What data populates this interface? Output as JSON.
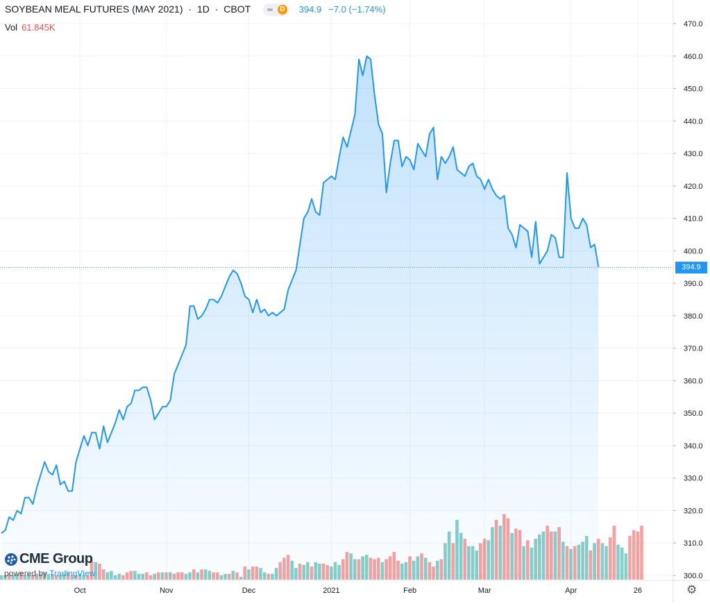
{
  "header": {
    "symbol": "SOYBEAN MEAL FUTURES (MAY 2021)",
    "interval": "1D",
    "exchange": "CBOT",
    "badge": "D",
    "last": "394.9",
    "change": "−7.0 (−1.74%)",
    "vol_label": "Vol",
    "vol_value": "61.845K"
  },
  "brand": {
    "name": "CME Group",
    "powered_prefix": "powered by",
    "powered_name": "TradingView"
  },
  "colors": {
    "line": "#2196f3",
    "vol_up": "#26a69a",
    "vol_down": "#ef5350",
    "grid": "#f0f3fa",
    "axis_text": "#131722"
  },
  "chart_data": {
    "type": "area",
    "title": "SOYBEAN MEAL FUTURES (MAY 2021)",
    "grid": true,
    "y_axis": {
      "position": "right",
      "range": [
        300,
        470
      ],
      "ticks": [
        "300.0",
        "310.0",
        "320.0",
        "330.0",
        "340.0",
        "350.0",
        "360.0",
        "370.0",
        "380.0",
        "390.0",
        "400.0",
        "410.0",
        "420.0",
        "430.0",
        "440.0",
        "450.0",
        "460.0",
        "470.0"
      ]
    },
    "x_axis": {
      "ticks": [
        {
          "label": "Oct",
          "day": 20
        },
        {
          "label": "Nov",
          "day": 42
        },
        {
          "label": "Dec",
          "day": 63
        },
        {
          "label": "2021",
          "day": 84
        },
        {
          "label": "Feb",
          "day": 104
        },
        {
          "label": "Mar",
          "day": 123
        },
        {
          "label": "Apr",
          "day": 145
        },
        {
          "label": "26",
          "day": 162
        }
      ]
    },
    "last_price": "394.9",
    "series": [
      {
        "values": [
          313,
          314,
          318,
          317,
          320,
          319,
          324,
          324,
          322,
          327,
          331,
          335,
          332,
          331,
          334,
          328,
          329,
          326,
          326,
          335,
          339,
          343,
          340,
          344,
          344,
          339,
          346,
          341,
          344,
          347,
          351,
          348,
          352,
          353,
          357,
          357,
          358,
          358,
          354,
          348,
          350,
          352,
          352,
          354,
          362,
          365,
          368,
          371,
          383,
          383,
          379,
          380,
          382,
          385,
          385,
          384,
          386,
          389,
          392,
          394,
          393,
          390,
          386,
          385,
          381,
          385,
          381,
          382,
          380,
          381,
          380,
          381,
          382,
          388,
          391,
          394,
          402,
          410,
          412,
          416,
          412,
          411,
          421,
          422,
          423,
          422,
          429,
          435,
          432,
          437,
          442,
          459,
          454,
          460,
          459,
          448,
          439,
          436,
          418,
          427,
          434,
          434,
          426,
          429,
          428,
          425,
          433,
          431,
          429,
          436,
          438,
          422,
          429,
          427,
          429,
          432,
          425,
          424,
          423,
          426,
          427,
          423,
          422,
          419,
          422,
          419,
          417,
          416,
          417,
          407,
          405,
          401,
          408,
          407,
          406,
          398,
          409,
          396,
          398,
          400,
          405,
          404,
          398,
          398,
          424,
          410,
          407,
          407,
          410,
          408,
          401,
          402,
          395
        ]
      }
    ],
    "volume": {
      "label": "Vol",
      "last": "61.845K",
      "max_value": 61845,
      "bars": [
        {
          "v": 0.03,
          "d": "up"
        },
        {
          "v": 0.03,
          "d": "up"
        },
        {
          "v": 0.04,
          "d": "down"
        },
        {
          "v": 0.03,
          "d": "up"
        },
        {
          "v": 0.04,
          "d": "up"
        },
        {
          "v": 0.05,
          "d": "down"
        },
        {
          "v": 0.03,
          "d": "up"
        },
        {
          "v": 0.04,
          "d": "up"
        },
        {
          "v": 0.03,
          "d": "down"
        },
        {
          "v": 0.04,
          "d": "up"
        },
        {
          "v": 0.04,
          "d": "down"
        },
        {
          "v": 0.05,
          "d": "up"
        },
        {
          "v": 0.04,
          "d": "up"
        },
        {
          "v": 0.04,
          "d": "up"
        },
        {
          "v": 0.03,
          "d": "down"
        },
        {
          "v": 0.03,
          "d": "up"
        },
        {
          "v": 0.04,
          "d": "up"
        },
        {
          "v": 0.05,
          "d": "down"
        },
        {
          "v": 0.03,
          "d": "up"
        },
        {
          "v": 0.03,
          "d": "down"
        },
        {
          "v": 0.04,
          "d": "up"
        },
        {
          "v": 0.03,
          "d": "up"
        },
        {
          "v": 0.03,
          "d": "down"
        },
        {
          "v": 0.13,
          "d": "down"
        },
        {
          "v": 0.12,
          "d": "up"
        },
        {
          "v": 0.11,
          "d": "down"
        },
        {
          "v": 0.07,
          "d": "down"
        },
        {
          "v": 0.05,
          "d": "up"
        },
        {
          "v": 0.06,
          "d": "up"
        },
        {
          "v": 0.03,
          "d": "up"
        },
        {
          "v": 0.04,
          "d": "up"
        },
        {
          "v": 0.03,
          "d": "down"
        },
        {
          "v": 0.05,
          "d": "down"
        },
        {
          "v": 0.06,
          "d": "down"
        },
        {
          "v": 0.06,
          "d": "up"
        },
        {
          "v": 0.04,
          "d": "up"
        },
        {
          "v": 0.04,
          "d": "up"
        },
        {
          "v": 0.05,
          "d": "down"
        },
        {
          "v": 0.03,
          "d": "down"
        },
        {
          "v": 0.04,
          "d": "up"
        },
        {
          "v": 0.05,
          "d": "down"
        },
        {
          "v": 0.05,
          "d": "up"
        },
        {
          "v": 0.05,
          "d": "down"
        },
        {
          "v": 0.05,
          "d": "up"
        },
        {
          "v": 0.04,
          "d": "down"
        },
        {
          "v": 0.05,
          "d": "down"
        },
        {
          "v": 0.05,
          "d": "down"
        },
        {
          "v": 0.04,
          "d": "up"
        },
        {
          "v": 0.05,
          "d": "up"
        },
        {
          "v": 0.07,
          "d": "down"
        },
        {
          "v": 0.05,
          "d": "up"
        },
        {
          "v": 0.07,
          "d": "down"
        },
        {
          "v": 0.07,
          "d": "up"
        },
        {
          "v": 0.06,
          "d": "up"
        },
        {
          "v": 0.05,
          "d": "down"
        },
        {
          "v": 0.05,
          "d": "down"
        },
        {
          "v": 0.03,
          "d": "up"
        },
        {
          "v": 0.04,
          "d": "up"
        },
        {
          "v": 0.04,
          "d": "down"
        },
        {
          "v": 0.06,
          "d": "up"
        },
        {
          "v": 0.05,
          "d": "down"
        },
        {
          "v": 0.02,
          "d": "up"
        },
        {
          "v": 0.09,
          "d": "down"
        },
        {
          "v": 0.07,
          "d": "up"
        },
        {
          "v": 0.09,
          "d": "down"
        },
        {
          "v": 0.09,
          "d": "down"
        },
        {
          "v": 0.08,
          "d": "up"
        },
        {
          "v": 0.05,
          "d": "up"
        },
        {
          "v": 0.04,
          "d": "down"
        },
        {
          "v": 0.04,
          "d": "up"
        },
        {
          "v": 0.08,
          "d": "up"
        },
        {
          "v": 0.12,
          "d": "down"
        },
        {
          "v": 0.15,
          "d": "down"
        },
        {
          "v": 0.17,
          "d": "down"
        },
        {
          "v": 0.13,
          "d": "up"
        },
        {
          "v": 0.08,
          "d": "up"
        },
        {
          "v": 0.11,
          "d": "down"
        },
        {
          "v": 0.1,
          "d": "up"
        },
        {
          "v": 0.12,
          "d": "up"
        },
        {
          "v": 0.09,
          "d": "down"
        },
        {
          "v": 0.12,
          "d": "up"
        },
        {
          "v": 0.11,
          "d": "up"
        },
        {
          "v": 0.11,
          "d": "down"
        },
        {
          "v": 0.1,
          "d": "down"
        },
        {
          "v": 0.09,
          "d": "up"
        },
        {
          "v": 0.12,
          "d": "up"
        },
        {
          "v": 0.1,
          "d": "up"
        },
        {
          "v": 0.14,
          "d": "down"
        },
        {
          "v": 0.19,
          "d": "down"
        },
        {
          "v": 0.18,
          "d": "up"
        },
        {
          "v": 0.14,
          "d": "up"
        },
        {
          "v": 0.14,
          "d": "down"
        },
        {
          "v": 0.16,
          "d": "up"
        },
        {
          "v": 0.17,
          "d": "up"
        },
        {
          "v": 0.15,
          "d": "down"
        },
        {
          "v": 0.14,
          "d": "down"
        },
        {
          "v": 0.15,
          "d": "down"
        },
        {
          "v": 0.12,
          "d": "up"
        },
        {
          "v": 0.14,
          "d": "down"
        },
        {
          "v": 0.16,
          "d": "down"
        },
        {
          "v": 0.19,
          "d": "down"
        },
        {
          "v": 0.13,
          "d": "down"
        },
        {
          "v": 0.11,
          "d": "up"
        },
        {
          "v": 0.12,
          "d": "up"
        },
        {
          "v": 0.16,
          "d": "down"
        },
        {
          "v": 0.13,
          "d": "up"
        },
        {
          "v": 0.16,
          "d": "up"
        },
        {
          "v": 0.18,
          "d": "down"
        },
        {
          "v": 0.15,
          "d": "up"
        },
        {
          "v": 0.12,
          "d": "down"
        },
        {
          "v": 0.09,
          "d": "down"
        },
        {
          "v": 0.13,
          "d": "up"
        },
        {
          "v": 0.14,
          "d": "down"
        },
        {
          "v": 0.25,
          "d": "up"
        },
        {
          "v": 0.33,
          "d": "up"
        },
        {
          "v": 0.25,
          "d": "down"
        },
        {
          "v": 0.41,
          "d": "up"
        },
        {
          "v": 0.32,
          "d": "up"
        },
        {
          "v": 0.28,
          "d": "down"
        },
        {
          "v": 0.23,
          "d": "up"
        },
        {
          "v": 0.23,
          "d": "up"
        },
        {
          "v": 0.2,
          "d": "up"
        },
        {
          "v": 0.25,
          "d": "down"
        },
        {
          "v": 0.28,
          "d": "down"
        },
        {
          "v": 0.27,
          "d": "up"
        },
        {
          "v": 0.36,
          "d": "up"
        },
        {
          "v": 0.41,
          "d": "down"
        },
        {
          "v": 0.37,
          "d": "up"
        },
        {
          "v": 0.45,
          "d": "down"
        },
        {
          "v": 0.42,
          "d": "down"
        },
        {
          "v": 0.32,
          "d": "up"
        },
        {
          "v": 0.35,
          "d": "down"
        },
        {
          "v": 0.34,
          "d": "down"
        },
        {
          "v": 0.23,
          "d": "up"
        },
        {
          "v": 0.27,
          "d": "down"
        },
        {
          "v": 0.22,
          "d": "up"
        },
        {
          "v": 0.28,
          "d": "up"
        },
        {
          "v": 0.31,
          "d": "up"
        },
        {
          "v": 0.33,
          "d": "up"
        },
        {
          "v": 0.37,
          "d": "down"
        },
        {
          "v": 0.33,
          "d": "down"
        },
        {
          "v": 0.33,
          "d": "up"
        },
        {
          "v": 0.36,
          "d": "down"
        },
        {
          "v": 0.26,
          "d": "up"
        },
        {
          "v": 0.23,
          "d": "down"
        },
        {
          "v": 0.21,
          "d": "up"
        },
        {
          "v": 0.23,
          "d": "down"
        },
        {
          "v": 0.24,
          "d": "up"
        },
        {
          "v": 0.26,
          "d": "up"
        },
        {
          "v": 0.3,
          "d": "up"
        },
        {
          "v": 0.2,
          "d": "down"
        },
        {
          "v": 0.25,
          "d": "up"
        },
        {
          "v": 0.28,
          "d": "down"
        },
        {
          "v": 0.25,
          "d": "up"
        },
        {
          "v": 0.23,
          "d": "up"
        },
        {
          "v": 0.29,
          "d": "down"
        },
        {
          "v": 0.37,
          "d": "down"
        },
        {
          "v": 0.24,
          "d": "up"
        },
        {
          "v": 0.22,
          "d": "up"
        },
        {
          "v": 0.18,
          "d": "up"
        },
        {
          "v": 0.3,
          "d": "down"
        },
        {
          "v": 0.34,
          "d": "down"
        },
        {
          "v": 0.33,
          "d": "down"
        },
        {
          "v": 0.37,
          "d": "down"
        }
      ]
    }
  }
}
